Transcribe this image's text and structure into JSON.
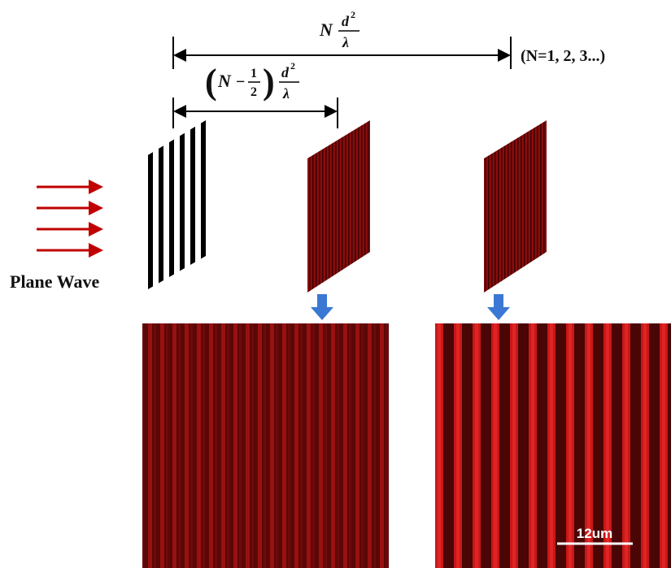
{
  "full_distance": {
    "N": "N",
    "numerator": "d",
    "exponent": "2",
    "denominator": "λ"
  },
  "series_note": "(N=1, 2, 3...)",
  "half_distance": {
    "open": "(",
    "N": "N",
    "minus": "−",
    "frac_num": "1",
    "frac_den": "2",
    "close": ")",
    "numerator": "d",
    "exponent": "2",
    "denominator": "λ"
  },
  "plane_wave": "Plane Wave",
  "scale_bar": "12um"
}
